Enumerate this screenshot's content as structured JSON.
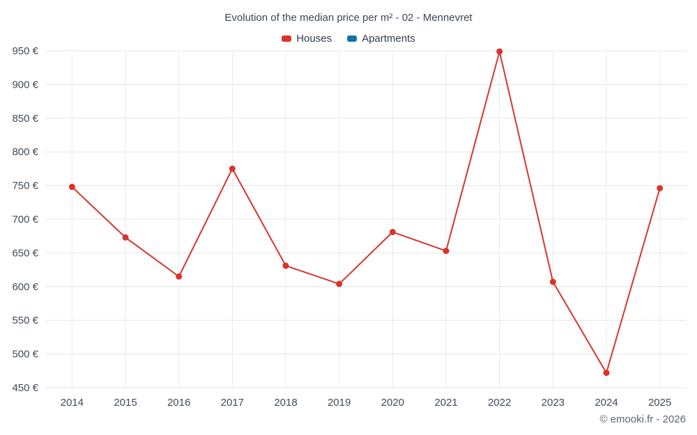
{
  "header": {
    "title": "Evolution of the median price per m² - 02 - Mennevret"
  },
  "legend": [
    {
      "label": "Houses",
      "color": "#d8342c"
    },
    {
      "label": "Apartments",
      "color": "#0f74a8"
    }
  ],
  "footer": {
    "credit": "© emooki.fr - 2026"
  },
  "chart_data": {
    "type": "line",
    "title": "Evolution of the median price per m² - 02 - Mennevret",
    "categories": [
      "2014",
      "2015",
      "2016",
      "2017",
      "2018",
      "2019",
      "2020",
      "2021",
      "2022",
      "2023",
      "2024",
      "2025"
    ],
    "series": [
      {
        "name": "Houses",
        "color": "#d8342c",
        "values": [
          748,
          673,
          615,
          775,
          631,
          604,
          681,
          653,
          949,
          607,
          472,
          746
        ]
      },
      {
        "name": "Apartments",
        "color": "#0f74a8",
        "values": []
      }
    ],
    "xlabel": "",
    "ylabel": "",
    "ylim": [
      450,
      950
    ],
    "ytick_step": 50,
    "ytick_suffix": " €",
    "grid": true,
    "legend_position": "top",
    "marker_radius": 4.5,
    "line_width": 2
  }
}
